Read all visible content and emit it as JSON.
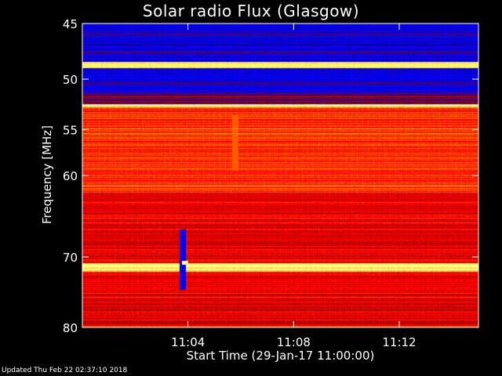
{
  "chart_data": {
    "type": "heatmap",
    "title": "Solar radio Flux (Glasgow)",
    "xlabel": "Start Time (29-Jan-17 11:00:00)",
    "ylabel": "Frequency [MHz]",
    "x_ticks": [
      "11:04",
      "11:08",
      "11:12"
    ],
    "x_tick_minutes": [
      4,
      8,
      12
    ],
    "xlim_minutes": [
      0,
      15
    ],
    "y_ticks": [
      45,
      50,
      55,
      60,
      70,
      80
    ],
    "ylim": [
      45,
      80
    ],
    "y_scale": "log",
    "colormap": [
      "#000060",
      "#0000ff",
      "#800000",
      "#ff0000",
      "#ff8000",
      "#ffff80"
    ],
    "bands": [
      {
        "from": 45.0,
        "to": 48.4,
        "level": 0.18
      },
      {
        "from": 48.4,
        "to": 49.0,
        "level": 0.98
      },
      {
        "from": 49.0,
        "to": 51.6,
        "level": 0.22
      },
      {
        "from": 51.6,
        "to": 52.4,
        "level": 0.35
      },
      {
        "from": 52.4,
        "to": 52.7,
        "level": 0.95
      },
      {
        "from": 52.7,
        "to": 62.0,
        "level": 0.66
      },
      {
        "from": 62.0,
        "to": 70.8,
        "level": 0.55
      },
      {
        "from": 70.8,
        "to": 72.0,
        "level": 0.96
      },
      {
        "from": 72.0,
        "to": 80.0,
        "level": 0.54
      }
    ],
    "features": [
      {
        "minute": 3.8,
        "from": 66.5,
        "to": 74.5,
        "kind": "low-intensity strip"
      },
      {
        "minute": 3.9,
        "from": 70.5,
        "to": 71.0,
        "kind": "bright spot"
      },
      {
        "minute": 5.8,
        "from": 53.5,
        "to": 59.5,
        "kind": "bright column"
      }
    ]
  },
  "footer": {
    "updated": "Updated Thu Feb 22 02:37:10 2018"
  }
}
